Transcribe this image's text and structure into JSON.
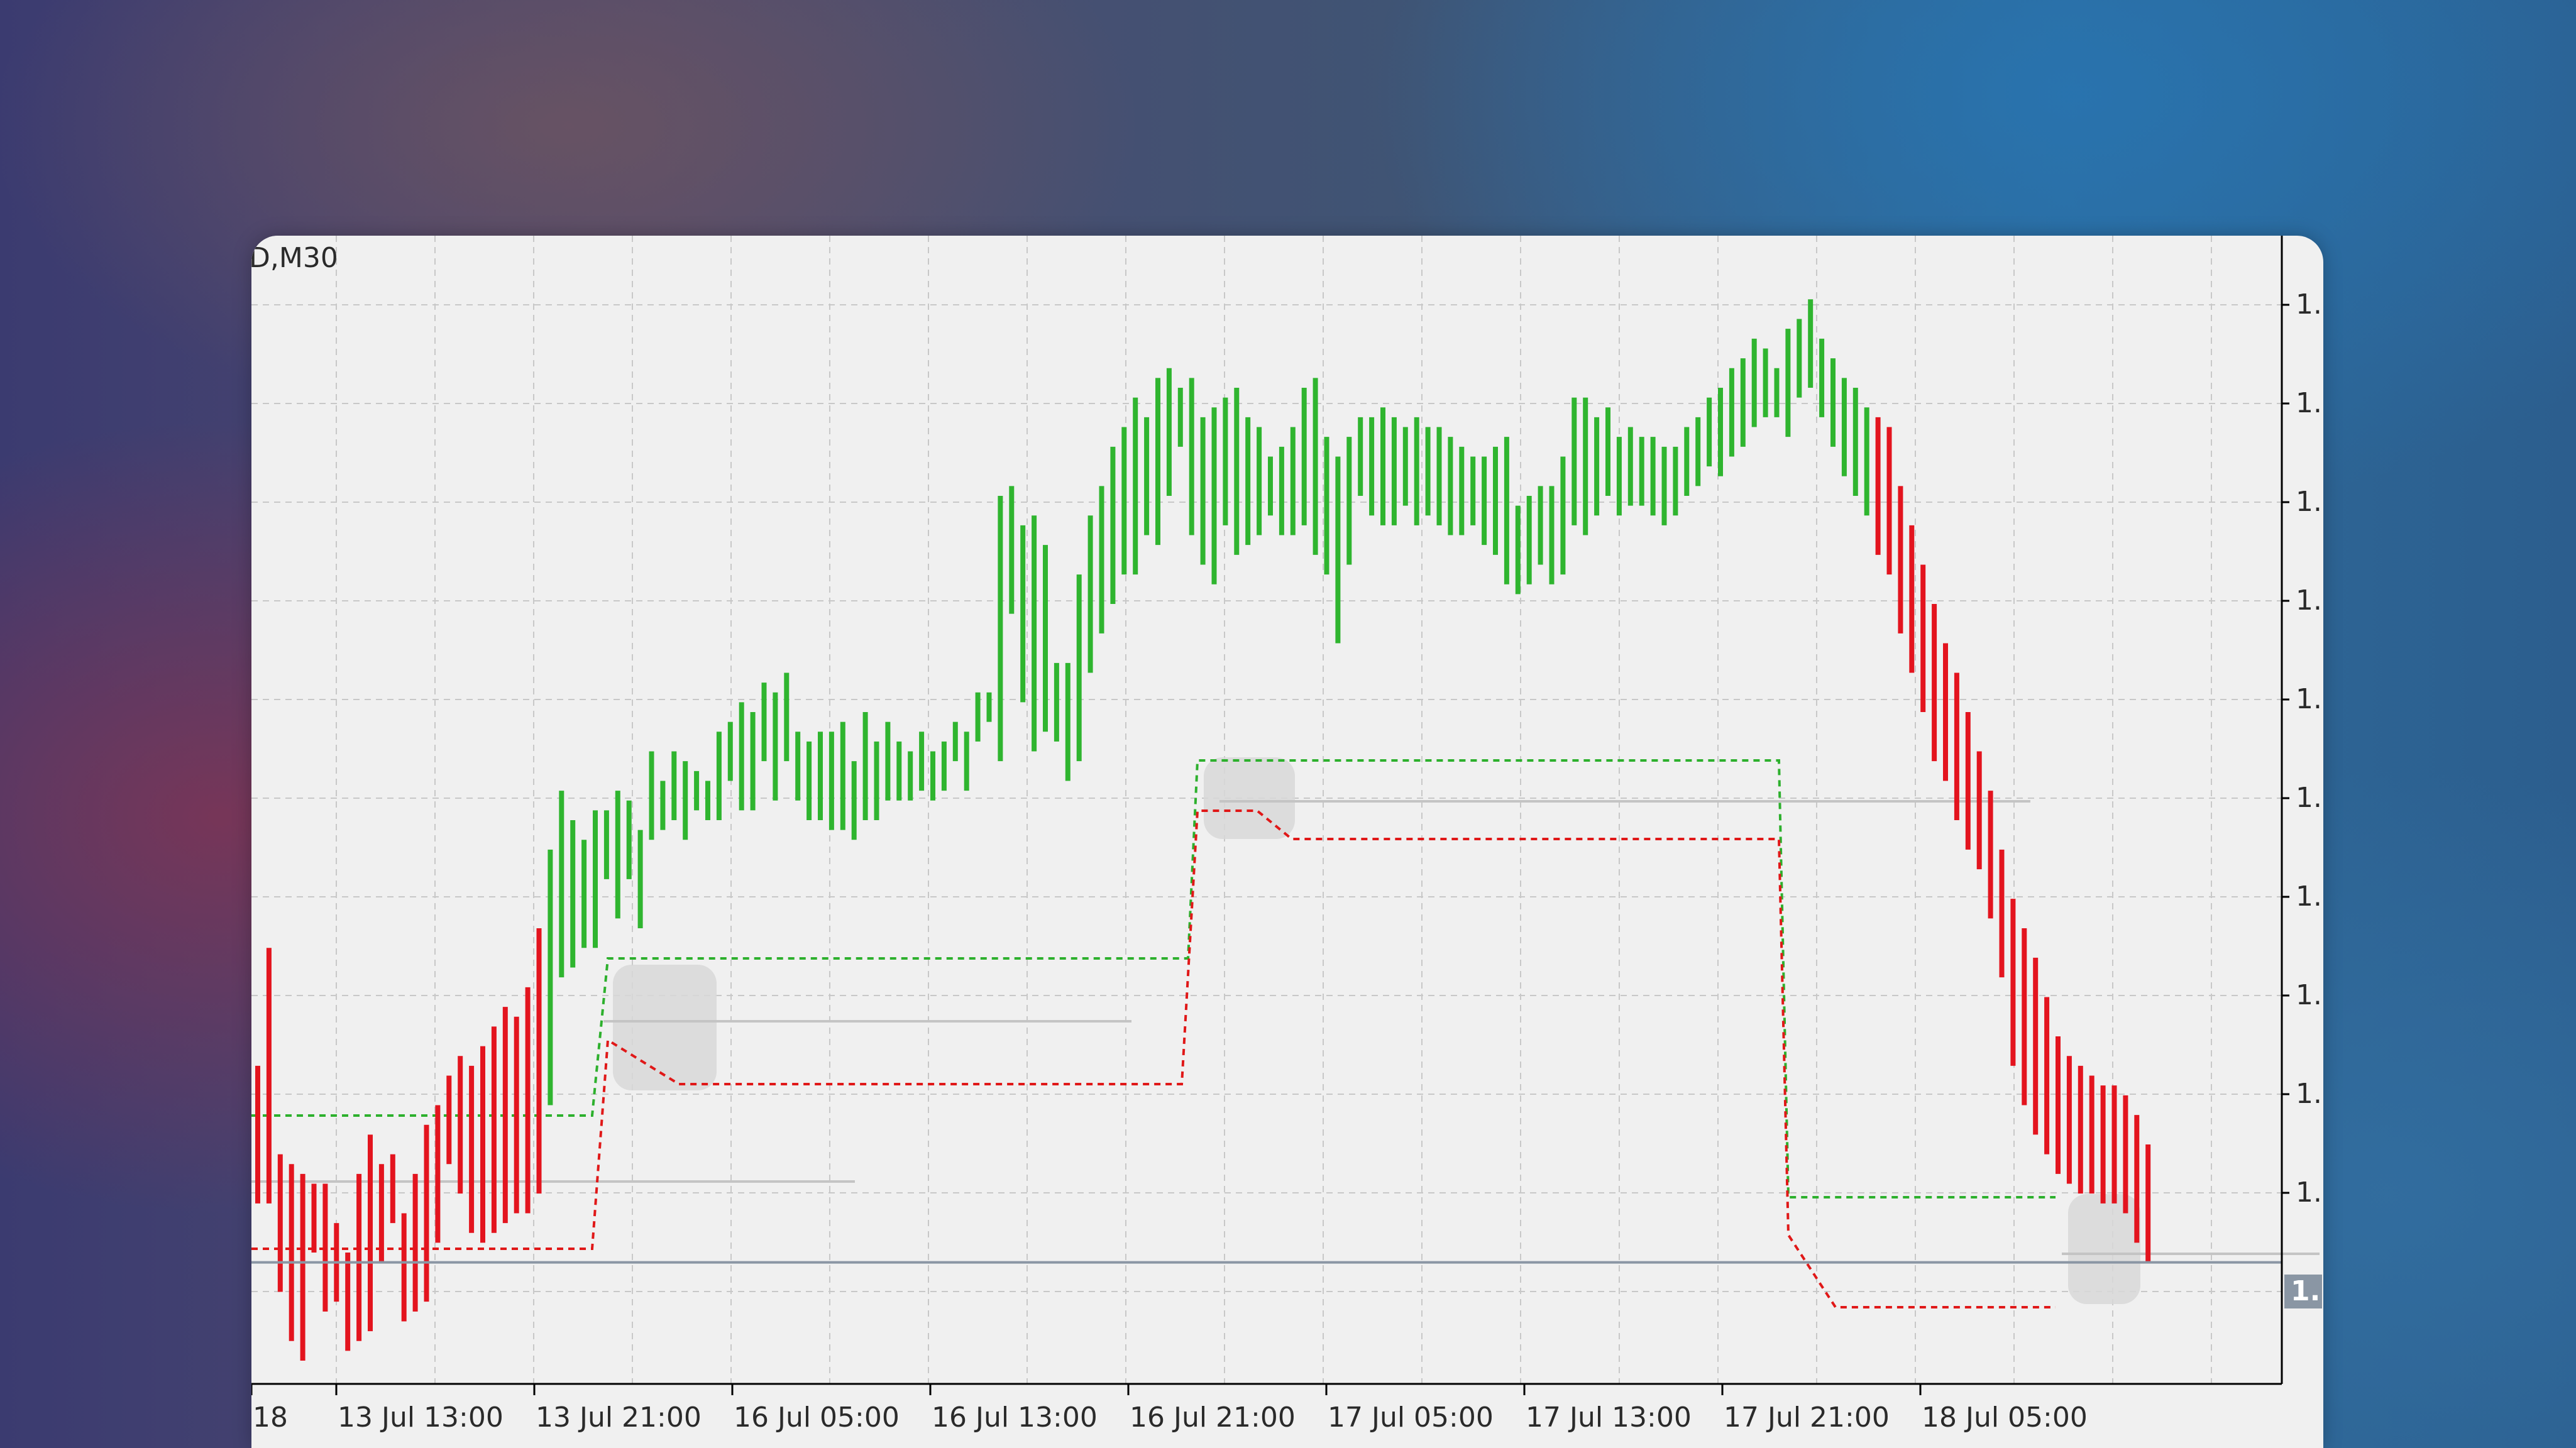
{
  "symbol_label": "D,M30",
  "colors": {
    "bull": "#2fb52f",
    "bear": "#e3141e",
    "upper_level": "#2db02d",
    "lower_level": "#e01818",
    "mid_level": "#c4c4c4",
    "zone_fill": "#d8d8d8",
    "grid": "#c8c8c8",
    "chart_bg": "#f0f0f0",
    "current_price_line": "#8a96a4",
    "price_tag_bg": "#8a96a4",
    "axis": "#000000"
  },
  "chart_data": {
    "type": "bar",
    "subtype": "ohlc",
    "timeframe": "M30",
    "x_tick_labels": [
      "18",
      "13 Jul 13:00",
      "13 Jul 21:00",
      "16 Jul 05:00",
      "16 Jul 13:00",
      "16 Jul 21:00",
      "17 Jul 05:00",
      "17 Jul 13:00",
      "17 Jul 21:00",
      "18 Jul 05:00"
    ],
    "y_tick_labels": [
      "1.",
      "1.",
      "1.",
      "1.",
      "1.",
      "1.",
      "1.",
      "1.",
      "1.",
      "1."
    ],
    "current_price_label": "1.",
    "grid": true,
    "ylim": [
      0,
      110
    ],
    "current_price": 10,
    "bars": [
      [
        16,
        30,
        "bear"
      ],
      [
        16,
        42,
        "bear"
      ],
      [
        7,
        21,
        "bear"
      ],
      [
        2,
        20,
        "bear"
      ],
      [
        0,
        19,
        "bear"
      ],
      [
        11,
        18,
        "bear"
      ],
      [
        5,
        18,
        "bear"
      ],
      [
        6,
        14,
        "bear"
      ],
      [
        1,
        11,
        "bear"
      ],
      [
        2,
        19,
        "bear"
      ],
      [
        3,
        23,
        "bear"
      ],
      [
        10,
        20,
        "bear"
      ],
      [
        14,
        21,
        "bear"
      ],
      [
        4,
        15,
        "bear"
      ],
      [
        5,
        19,
        "bear"
      ],
      [
        6,
        24,
        "bear"
      ],
      [
        12,
        26,
        "bear"
      ],
      [
        20,
        29,
        "bear"
      ],
      [
        17,
        31,
        "bear"
      ],
      [
        13,
        30,
        "bear"
      ],
      [
        12,
        32,
        "bear"
      ],
      [
        13,
        34,
        "bear"
      ],
      [
        14,
        36,
        "bear"
      ],
      [
        15,
        35,
        "bear"
      ],
      [
        15,
        38,
        "bear"
      ],
      [
        17,
        44,
        "bear"
      ],
      [
        26,
        52,
        "bull"
      ],
      [
        39,
        58,
        "bull"
      ],
      [
        40,
        55,
        "bull"
      ],
      [
        42,
        53,
        "bull"
      ],
      [
        42,
        56,
        "bull"
      ],
      [
        49,
        56,
        "bull"
      ],
      [
        45,
        58,
        "bull"
      ],
      [
        49,
        57,
        "bull"
      ],
      [
        44,
        54,
        "bull"
      ],
      [
        53,
        62,
        "bull"
      ],
      [
        54,
        59,
        "bull"
      ],
      [
        55,
        62,
        "bull"
      ],
      [
        53,
        61,
        "bull"
      ],
      [
        56,
        60,
        "bull"
      ],
      [
        55,
        59,
        "bull"
      ],
      [
        55,
        64,
        "bull"
      ],
      [
        59,
        65,
        "bull"
      ],
      [
        56,
        67,
        "bull"
      ],
      [
        56,
        66,
        "bull"
      ],
      [
        61,
        69,
        "bull"
      ],
      [
        57,
        68,
        "bull"
      ],
      [
        61,
        70,
        "bull"
      ],
      [
        57,
        64,
        "bull"
      ],
      [
        55,
        63,
        "bull"
      ],
      [
        55,
        64,
        "bull"
      ],
      [
        54,
        64,
        "bull"
      ],
      [
        54,
        65,
        "bull"
      ],
      [
        53,
        61,
        "bull"
      ],
      [
        55,
        66,
        "bull"
      ],
      [
        55,
        63,
        "bull"
      ],
      [
        57,
        65,
        "bull"
      ],
      [
        57,
        63,
        "bull"
      ],
      [
        57,
        62,
        "bull"
      ],
      [
        58,
        64,
        "bull"
      ],
      [
        57,
        62,
        "bull"
      ],
      [
        58,
        63,
        "bull"
      ],
      [
        61,
        65,
        "bull"
      ],
      [
        58,
        64,
        "bull"
      ],
      [
        63,
        68,
        "bull"
      ],
      [
        65,
        68,
        "bull"
      ],
      [
        61,
        88,
        "bull"
      ],
      [
        76,
        89,
        "bull"
      ],
      [
        67,
        85,
        "bull"
      ],
      [
        62,
        86,
        "bull"
      ],
      [
        64,
        83,
        "bull"
      ],
      [
        63,
        71,
        "bull"
      ],
      [
        59,
        71,
        "bull"
      ],
      [
        61,
        80,
        "bull"
      ],
      [
        70,
        86,
        "bull"
      ],
      [
        74,
        89,
        "bull"
      ],
      [
        77,
        93,
        "bull"
      ],
      [
        80,
        95,
        "bull"
      ],
      [
        80,
        98,
        "bull"
      ],
      [
        84,
        96,
        "bull"
      ],
      [
        83,
        100,
        "bull"
      ],
      [
        88,
        101,
        "bull"
      ],
      [
        93,
        99,
        "bull"
      ],
      [
        84,
        100,
        "bull"
      ],
      [
        81,
        96,
        "bull"
      ],
      [
        79,
        97,
        "bull"
      ],
      [
        85,
        98,
        "bull"
      ],
      [
        82,
        99,
        "bull"
      ],
      [
        83,
        96,
        "bull"
      ],
      [
        84,
        95,
        "bull"
      ],
      [
        86,
        92,
        "bull"
      ],
      [
        84,
        93,
        "bull"
      ],
      [
        84,
        95,
        "bull"
      ],
      [
        85,
        99,
        "bull"
      ],
      [
        82,
        100,
        "bull"
      ],
      [
        80,
        94,
        "bull"
      ],
      [
        73,
        92,
        "bull"
      ],
      [
        81,
        94,
        "bull"
      ],
      [
        88,
        96,
        "bull"
      ],
      [
        86,
        96,
        "bull"
      ],
      [
        85,
        97,
        "bull"
      ],
      [
        85,
        96,
        "bull"
      ],
      [
        87,
        95,
        "bull"
      ],
      [
        85,
        96,
        "bull"
      ],
      [
        86,
        95,
        "bull"
      ],
      [
        85,
        95,
        "bull"
      ],
      [
        84,
        94,
        "bull"
      ],
      [
        84,
        93,
        "bull"
      ],
      [
        85,
        92,
        "bull"
      ],
      [
        83,
        92,
        "bull"
      ],
      [
        82,
        93,
        "bull"
      ],
      [
        79,
        94,
        "bull"
      ],
      [
        78,
        87,
        "bull"
      ],
      [
        79,
        88,
        "bull"
      ],
      [
        81,
        89,
        "bull"
      ],
      [
        79,
        89,
        "bull"
      ],
      [
        80,
        92,
        "bull"
      ],
      [
        85,
        98,
        "bull"
      ],
      [
        84,
        98,
        "bull"
      ],
      [
        86,
        96,
        "bull"
      ],
      [
        88,
        97,
        "bull"
      ],
      [
        86,
        94,
        "bull"
      ],
      [
        87,
        95,
        "bull"
      ],
      [
        87,
        94,
        "bull"
      ],
      [
        86,
        94,
        "bull"
      ],
      [
        85,
        93,
        "bull"
      ],
      [
        86,
        93,
        "bull"
      ],
      [
        88,
        95,
        "bull"
      ],
      [
        89,
        96,
        "bull"
      ],
      [
        91,
        98,
        "bull"
      ],
      [
        90,
        99,
        "bull"
      ],
      [
        92,
        101,
        "bull"
      ],
      [
        93,
        102,
        "bull"
      ],
      [
        95,
        104,
        "bull"
      ],
      [
        96,
        103,
        "bull"
      ],
      [
        96,
        101,
        "bull"
      ],
      [
        94,
        105,
        "bull"
      ],
      [
        98,
        106,
        "bull"
      ],
      [
        99,
        108,
        "bull"
      ],
      [
        96,
        104,
        "bull"
      ],
      [
        93,
        102,
        "bull"
      ],
      [
        90,
        100,
        "bull"
      ],
      [
        88,
        99,
        "bull"
      ],
      [
        86,
        97,
        "bull"
      ],
      [
        82,
        96,
        "bear"
      ],
      [
        80,
        95,
        "bear"
      ],
      [
        74,
        89,
        "bear"
      ],
      [
        70,
        85,
        "bear"
      ],
      [
        66,
        81,
        "bear"
      ],
      [
        61,
        77,
        "bear"
      ],
      [
        59,
        73,
        "bear"
      ],
      [
        55,
        70,
        "bear"
      ],
      [
        52,
        66,
        "bear"
      ],
      [
        50,
        62,
        "bear"
      ],
      [
        45,
        58,
        "bear"
      ],
      [
        39,
        52,
        "bear"
      ],
      [
        30,
        47,
        "bear"
      ],
      [
        26,
        44,
        "bear"
      ],
      [
        23,
        41,
        "bear"
      ],
      [
        21,
        37,
        "bear"
      ],
      [
        19,
        33,
        "bear"
      ],
      [
        18,
        31,
        "bear"
      ],
      [
        17,
        30,
        "bear"
      ],
      [
        17,
        29,
        "bear"
      ],
      [
        16,
        28,
        "bear"
      ],
      [
        16,
        28,
        "bear"
      ],
      [
        15,
        27,
        "bear"
      ],
      [
        12,
        25,
        "bear"
      ],
      [
        10,
        22,
        "bear"
      ]
    ],
    "levels": [
      {
        "name": "upper",
        "segments": [
          [
            0,
            25,
            46
          ],
          [
            26,
            65,
            60
          ],
          [
            66,
            130,
            75
          ],
          [
            131,
            170,
            37
          ]
        ]
      },
      {
        "name": "lower",
        "segments": [
          [
            0,
            25,
            40
          ],
          [
            26,
            65,
            50
          ],
          [
            66,
            130,
            70
          ],
          [
            131,
            170,
            29
          ]
        ]
      }
    ]
  }
}
